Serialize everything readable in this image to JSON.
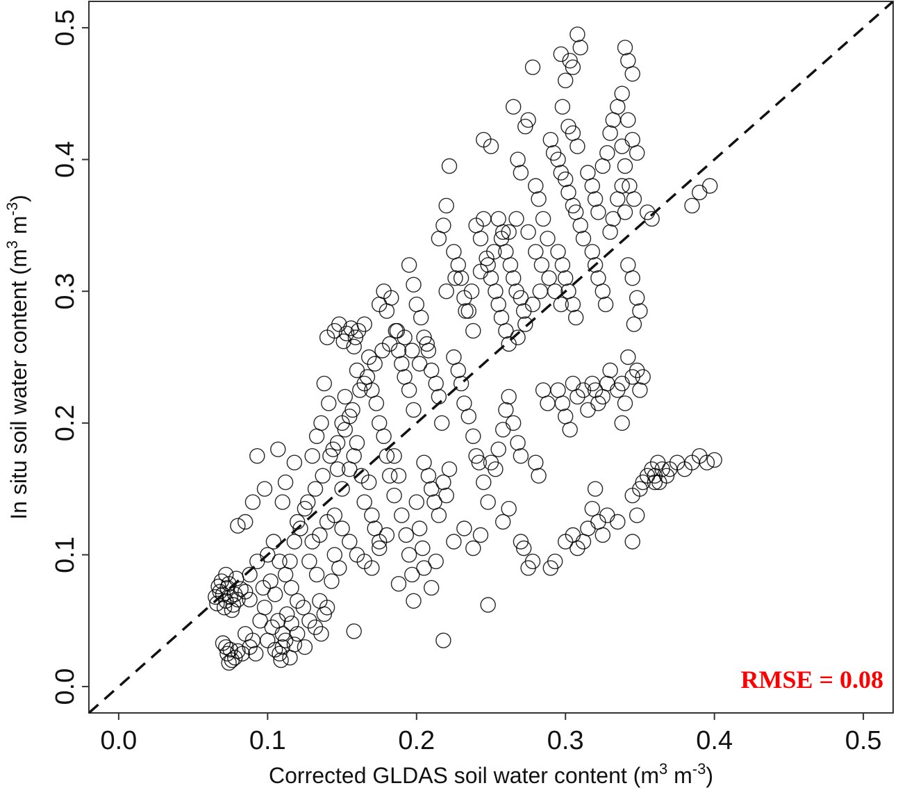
{
  "chart_data": {
    "type": "scatter",
    "xlim": [
      -0.02,
      0.52
    ],
    "ylim": [
      -0.02,
      0.52
    ],
    "x_ticks": [
      "0.0",
      "0.1",
      "0.2",
      "0.3",
      "0.4",
      "0.5"
    ],
    "y_ticks": [
      "0.0",
      "0.1",
      "0.2",
      "0.3",
      "0.4",
      "0.5"
    ],
    "xlabel": {
      "main": "Corrected GLDAS soil water content (m",
      "sup1": "3",
      "mid": " m",
      "sup2": "-3",
      "end": ")"
    },
    "ylabel": {
      "main": "In situ soil water content  (m",
      "sup1": "3",
      "mid": " m",
      "sup2": "-3",
      "end": ")"
    },
    "annotation": "RMSE = 0.08",
    "annotation_color": "#ff0000",
    "grid": false,
    "reference_line": {
      "style": "dashed",
      "from": [
        -0.02,
        -0.02
      ],
      "to": [
        0.52,
        0.52
      ]
    },
    "points": [
      [
        0.07,
        0.07
      ],
      [
        0.072,
        0.065
      ],
      [
        0.075,
        0.068
      ],
      [
        0.068,
        0.072
      ],
      [
        0.078,
        0.07
      ],
      [
        0.073,
        0.075
      ],
      [
        0.08,
        0.066
      ],
      [
        0.066,
        0.063
      ],
      [
        0.071,
        0.06
      ],
      [
        0.077,
        0.062
      ],
      [
        0.074,
        0.078
      ],
      [
        0.069,
        0.08
      ],
      [
        0.082,
        0.074
      ],
      [
        0.065,
        0.068
      ],
      [
        0.076,
        0.058
      ],
      [
        0.085,
        0.072
      ],
      [
        0.079,
        0.082
      ],
      [
        0.072,
        0.085
      ],
      [
        0.088,
        0.066
      ],
      [
        0.067,
        0.076
      ],
      [
        0.073,
        0.025
      ],
      [
        0.075,
        0.028
      ],
      [
        0.078,
        0.022
      ],
      [
        0.072,
        0.03
      ],
      [
        0.08,
        0.027
      ],
      [
        0.076,
        0.02
      ],
      [
        0.083,
        0.025
      ],
      [
        0.07,
        0.033
      ],
      [
        0.088,
        0.03
      ],
      [
        0.074,
        0.018
      ],
      [
        0.11,
        0.03
      ],
      [
        0.108,
        0.025
      ],
      [
        0.112,
        0.035
      ],
      [
        0.105,
        0.028
      ],
      [
        0.115,
        0.022
      ],
      [
        0.11,
        0.04
      ],
      [
        0.103,
        0.045
      ],
      [
        0.118,
        0.032
      ],
      [
        0.107,
        0.05
      ],
      [
        0.12,
        0.04
      ],
      [
        0.113,
        0.055
      ],
      [
        0.1,
        0.035
      ],
      [
        0.125,
        0.03
      ],
      [
        0.116,
        0.048
      ],
      [
        0.109,
        0.02
      ],
      [
        0.085,
        0.04
      ],
      [
        0.09,
        0.035
      ],
      [
        0.092,
        0.025
      ],
      [
        0.095,
        0.05
      ],
      [
        0.098,
        0.06
      ],
      [
        0.088,
        0.085
      ],
      [
        0.093,
        0.095
      ],
      [
        0.097,
        0.075
      ],
      [
        0.102,
        0.08
      ],
      [
        0.105,
        0.07
      ],
      [
        0.085,
        0.125
      ],
      [
        0.09,
        0.14
      ],
      [
        0.093,
        0.175
      ],
      [
        0.098,
        0.15
      ],
      [
        0.08,
        0.122
      ],
      [
        0.107,
        0.18
      ],
      [
        0.11,
        0.14
      ],
      [
        0.118,
        0.17
      ],
      [
        0.112,
        0.155
      ],
      [
        0.12,
        0.125
      ],
      [
        0.125,
        0.135
      ],
      [
        0.128,
        0.095
      ],
      [
        0.13,
        0.11
      ],
      [
        0.133,
        0.085
      ],
      [
        0.135,
        0.065
      ],
      [
        0.138,
        0.055
      ],
      [
        0.14,
        0.06
      ],
      [
        0.143,
        0.08
      ],
      [
        0.145,
        0.1
      ],
      [
        0.148,
        0.09
      ],
      [
        0.13,
        0.175
      ],
      [
        0.133,
        0.19
      ],
      [
        0.136,
        0.2
      ],
      [
        0.138,
        0.23
      ],
      [
        0.141,
        0.215
      ],
      [
        0.144,
        0.18
      ],
      [
        0.147,
        0.165
      ],
      [
        0.15,
        0.2
      ],
      [
        0.152,
        0.22
      ],
      [
        0.155,
        0.205
      ],
      [
        0.14,
        0.265
      ],
      [
        0.145,
        0.27
      ],
      [
        0.148,
        0.275
      ],
      [
        0.151,
        0.262
      ],
      [
        0.153,
        0.268
      ],
      [
        0.156,
        0.272
      ],
      [
        0.159,
        0.265
      ],
      [
        0.161,
        0.27
      ],
      [
        0.165,
        0.275
      ],
      [
        0.158,
        0.258
      ],
      [
        0.15,
        0.15
      ],
      [
        0.155,
        0.165
      ],
      [
        0.158,
        0.175
      ],
      [
        0.16,
        0.185
      ],
      [
        0.163,
        0.16
      ],
      [
        0.165,
        0.14
      ],
      [
        0.168,
        0.155
      ],
      [
        0.17,
        0.13
      ],
      [
        0.172,
        0.12
      ],
      [
        0.175,
        0.11
      ],
      [
        0.16,
        0.24
      ],
      [
        0.165,
        0.23
      ],
      [
        0.168,
        0.25
      ],
      [
        0.17,
        0.225
      ],
      [
        0.173,
        0.215
      ],
      [
        0.175,
        0.2
      ],
      [
        0.178,
        0.19
      ],
      [
        0.18,
        0.175
      ],
      [
        0.182,
        0.16
      ],
      [
        0.185,
        0.145
      ],
      [
        0.175,
        0.29
      ],
      [
        0.178,
        0.3
      ],
      [
        0.18,
        0.285
      ],
      [
        0.183,
        0.295
      ],
      [
        0.186,
        0.27
      ],
      [
        0.188,
        0.255
      ],
      [
        0.19,
        0.245
      ],
      [
        0.192,
        0.235
      ],
      [
        0.195,
        0.225
      ],
      [
        0.198,
        0.21
      ],
      [
        0.185,
        0.175
      ],
      [
        0.188,
        0.16
      ],
      [
        0.19,
        0.13
      ],
      [
        0.193,
        0.115
      ],
      [
        0.195,
        0.1
      ],
      [
        0.197,
        0.085
      ],
      [
        0.2,
        0.14
      ],
      [
        0.202,
        0.12
      ],
      [
        0.204,
        0.105
      ],
      [
        0.205,
        0.09
      ],
      [
        0.195,
        0.32
      ],
      [
        0.198,
        0.305
      ],
      [
        0.2,
        0.29
      ],
      [
        0.203,
        0.28
      ],
      [
        0.205,
        0.265
      ],
      [
        0.208,
        0.255
      ],
      [
        0.21,
        0.24
      ],
      [
        0.213,
        0.23
      ],
      [
        0.215,
        0.22
      ],
      [
        0.217,
        0.2
      ],
      [
        0.205,
        0.17
      ],
      [
        0.208,
        0.16
      ],
      [
        0.21,
        0.15
      ],
      [
        0.212,
        0.14
      ],
      [
        0.215,
        0.13
      ],
      [
        0.218,
        0.155
      ],
      [
        0.22,
        0.145
      ],
      [
        0.222,
        0.165
      ],
      [
        0.21,
        0.075
      ],
      [
        0.218,
        0.035
      ],
      [
        0.215,
        0.34
      ],
      [
        0.218,
        0.35
      ],
      [
        0.22,
        0.365
      ],
      [
        0.222,
        0.395
      ],
      [
        0.225,
        0.33
      ],
      [
        0.228,
        0.32
      ],
      [
        0.23,
        0.31
      ],
      [
        0.232,
        0.295
      ],
      [
        0.235,
        0.285
      ],
      [
        0.238,
        0.27
      ],
      [
        0.225,
        0.25
      ],
      [
        0.228,
        0.24
      ],
      [
        0.23,
        0.23
      ],
      [
        0.232,
        0.215
      ],
      [
        0.235,
        0.205
      ],
      [
        0.238,
        0.19
      ],
      [
        0.24,
        0.175
      ],
      [
        0.242,
        0.17
      ],
      [
        0.245,
        0.155
      ],
      [
        0.248,
        0.14
      ],
      [
        0.24,
        0.35
      ],
      [
        0.243,
        0.34
      ],
      [
        0.245,
        0.355
      ],
      [
        0.248,
        0.32
      ],
      [
        0.25,
        0.31
      ],
      [
        0.253,
        0.3
      ],
      [
        0.255,
        0.29
      ],
      [
        0.257,
        0.28
      ],
      [
        0.26,
        0.27
      ],
      [
        0.262,
        0.26
      ],
      [
        0.245,
        0.415
      ],
      [
        0.25,
        0.41
      ],
      [
        0.255,
        0.355
      ],
      [
        0.258,
        0.345
      ],
      [
        0.26,
        0.33
      ],
      [
        0.263,
        0.32
      ],
      [
        0.265,
        0.31
      ],
      [
        0.267,
        0.3
      ],
      [
        0.27,
        0.295
      ],
      [
        0.272,
        0.285
      ],
      [
        0.25,
        0.17
      ],
      [
        0.253,
        0.165
      ],
      [
        0.255,
        0.18
      ],
      [
        0.258,
        0.195
      ],
      [
        0.26,
        0.21
      ],
      [
        0.262,
        0.22
      ],
      [
        0.265,
        0.2
      ],
      [
        0.268,
        0.185
      ],
      [
        0.27,
        0.175
      ],
      [
        0.248,
        0.062
      ],
      [
        0.265,
        0.44
      ],
      [
        0.268,
        0.4
      ],
      [
        0.27,
        0.39
      ],
      [
        0.273,
        0.425
      ],
      [
        0.275,
        0.43
      ],
      [
        0.278,
        0.47
      ],
      [
        0.28,
        0.38
      ],
      [
        0.282,
        0.37
      ],
      [
        0.285,
        0.355
      ],
      [
        0.288,
        0.34
      ],
      [
        0.27,
        0.11
      ],
      [
        0.272,
        0.105
      ],
      [
        0.275,
        0.09
      ],
      [
        0.278,
        0.095
      ],
      [
        0.28,
        0.17
      ],
      [
        0.282,
        0.16
      ],
      [
        0.285,
        0.225
      ],
      [
        0.288,
        0.215
      ],
      [
        0.29,
        0.09
      ],
      [
        0.293,
        0.095
      ],
      [
        0.29,
        0.415
      ],
      [
        0.292,
        0.405
      ],
      [
        0.295,
        0.4
      ],
      [
        0.297,
        0.39
      ],
      [
        0.3,
        0.385
      ],
      [
        0.302,
        0.375
      ],
      [
        0.305,
        0.365
      ],
      [
        0.307,
        0.36
      ],
      [
        0.31,
        0.35
      ],
      [
        0.312,
        0.34
      ],
      [
        0.297,
        0.48
      ],
      [
        0.3,
        0.46
      ],
      [
        0.303,
        0.475
      ],
      [
        0.305,
        0.47
      ],
      [
        0.308,
        0.495
      ],
      [
        0.31,
        0.485
      ],
      [
        0.298,
        0.44
      ],
      [
        0.302,
        0.425
      ],
      [
        0.305,
        0.42
      ],
      [
        0.308,
        0.41
      ],
      [
        0.295,
        0.33
      ],
      [
        0.298,
        0.32
      ],
      [
        0.3,
        0.31
      ],
      [
        0.302,
        0.3
      ],
      [
        0.305,
        0.29
      ],
      [
        0.307,
        0.28
      ],
      [
        0.295,
        0.225
      ],
      [
        0.298,
        0.215
      ],
      [
        0.3,
        0.205
      ],
      [
        0.303,
        0.195
      ],
      [
        0.305,
        0.23
      ],
      [
        0.308,
        0.22
      ],
      [
        0.312,
        0.225
      ],
      [
        0.315,
        0.21
      ],
      [
        0.318,
        0.23
      ],
      [
        0.32,
        0.225
      ],
      [
        0.322,
        0.215
      ],
      [
        0.325,
        0.22
      ],
      [
        0.328,
        0.23
      ],
      [
        0.33,
        0.24
      ],
      [
        0.3,
        0.11
      ],
      [
        0.305,
        0.115
      ],
      [
        0.308,
        0.105
      ],
      [
        0.312,
        0.11
      ],
      [
        0.315,
        0.12
      ],
      [
        0.318,
        0.135
      ],
      [
        0.32,
        0.15
      ],
      [
        0.322,
        0.125
      ],
      [
        0.325,
        0.115
      ],
      [
        0.328,
        0.13
      ],
      [
        0.315,
        0.39
      ],
      [
        0.318,
        0.38
      ],
      [
        0.32,
        0.37
      ],
      [
        0.322,
        0.36
      ],
      [
        0.325,
        0.395
      ],
      [
        0.328,
        0.405
      ],
      [
        0.33,
        0.42
      ],
      [
        0.332,
        0.43
      ],
      [
        0.335,
        0.44
      ],
      [
        0.338,
        0.41
      ],
      [
        0.318,
        0.33
      ],
      [
        0.32,
        0.32
      ],
      [
        0.322,
        0.31
      ],
      [
        0.325,
        0.3
      ],
      [
        0.327,
        0.29
      ],
      [
        0.33,
        0.345
      ],
      [
        0.332,
        0.355
      ],
      [
        0.335,
        0.37
      ],
      [
        0.338,
        0.38
      ],
      [
        0.34,
        0.36
      ],
      [
        0.335,
        0.225
      ],
      [
        0.338,
        0.23
      ],
      [
        0.34,
        0.215
      ],
      [
        0.342,
        0.25
      ],
      [
        0.345,
        0.235
      ],
      [
        0.348,
        0.24
      ],
      [
        0.35,
        0.225
      ],
      [
        0.338,
        0.2
      ],
      [
        0.335,
        0.125
      ],
      [
        0.345,
        0.11
      ],
      [
        0.34,
        0.485
      ],
      [
        0.342,
        0.475
      ],
      [
        0.345,
        0.465
      ],
      [
        0.338,
        0.45
      ],
      [
        0.342,
        0.43
      ],
      [
        0.345,
        0.415
      ],
      [
        0.348,
        0.405
      ],
      [
        0.34,
        0.395
      ],
      [
        0.343,
        0.38
      ],
      [
        0.346,
        0.37
      ],
      [
        0.342,
        0.32
      ],
      [
        0.345,
        0.31
      ],
      [
        0.348,
        0.295
      ],
      [
        0.35,
        0.285
      ],
      [
        0.346,
        0.275
      ],
      [
        0.355,
        0.36
      ],
      [
        0.358,
        0.355
      ],
      [
        0.352,
        0.235
      ],
      [
        0.348,
        0.13
      ],
      [
        0.345,
        0.145
      ],
      [
        0.35,
        0.15
      ],
      [
        0.352,
        0.155
      ],
      [
        0.355,
        0.16
      ],
      [
        0.358,
        0.165
      ],
      [
        0.36,
        0.155
      ],
      [
        0.362,
        0.17
      ],
      [
        0.365,
        0.165
      ],
      [
        0.368,
        0.16
      ],
      [
        0.36,
        0.16
      ],
      [
        0.363,
        0.155
      ],
      [
        0.37,
        0.165
      ],
      [
        0.375,
        0.17
      ],
      [
        0.38,
        0.165
      ],
      [
        0.385,
        0.17
      ],
      [
        0.39,
        0.175
      ],
      [
        0.395,
        0.17
      ],
      [
        0.4,
        0.172
      ],
      [
        0.385,
        0.365
      ],
      [
        0.39,
        0.375
      ],
      [
        0.397,
        0.38
      ],
      [
        0.115,
        0.095
      ],
      [
        0.118,
        0.11
      ],
      [
        0.122,
        0.12
      ],
      [
        0.127,
        0.14
      ],
      [
        0.132,
        0.15
      ],
      [
        0.137,
        0.16
      ],
      [
        0.142,
        0.175
      ],
      [
        0.147,
        0.185
      ],
      [
        0.152,
        0.195
      ],
      [
        0.157,
        0.21
      ],
      [
        0.162,
        0.225
      ],
      [
        0.167,
        0.235
      ],
      [
        0.172,
        0.245
      ],
      [
        0.177,
        0.255
      ],
      [
        0.182,
        0.26
      ],
      [
        0.187,
        0.27
      ],
      [
        0.192,
        0.265
      ],
      [
        0.197,
        0.255
      ],
      [
        0.202,
        0.245
      ],
      [
        0.207,
        0.26
      ],
      [
        0.135,
        0.115
      ],
      [
        0.14,
        0.125
      ],
      [
        0.145,
        0.13
      ],
      [
        0.15,
        0.12
      ],
      [
        0.155,
        0.11
      ],
      [
        0.16,
        0.1
      ],
      [
        0.165,
        0.095
      ],
      [
        0.17,
        0.09
      ],
      [
        0.175,
        0.105
      ],
      [
        0.18,
        0.115
      ],
      [
        0.1,
        0.1
      ],
      [
        0.104,
        0.11
      ],
      [
        0.108,
        0.095
      ],
      [
        0.112,
        0.085
      ],
      [
        0.116,
        0.075
      ],
      [
        0.12,
        0.065
      ],
      [
        0.124,
        0.06
      ],
      [
        0.128,
        0.05
      ],
      [
        0.132,
        0.045
      ],
      [
        0.136,
        0.04
      ],
      [
        0.158,
        0.042
      ],
      [
        0.188,
        0.078
      ],
      [
        0.198,
        0.065
      ],
      [
        0.213,
        0.095
      ],
      [
        0.225,
        0.11
      ],
      [
        0.232,
        0.12
      ],
      [
        0.238,
        0.105
      ],
      [
        0.243,
        0.115
      ],
      [
        0.258,
        0.125
      ],
      [
        0.262,
        0.135
      ],
      [
        0.22,
        0.3
      ],
      [
        0.226,
        0.31
      ],
      [
        0.233,
        0.285
      ],
      [
        0.237,
        0.3
      ],
      [
        0.243,
        0.315
      ],
      [
        0.247,
        0.325
      ],
      [
        0.252,
        0.33
      ],
      [
        0.257,
        0.34
      ],
      [
        0.262,
        0.345
      ],
      [
        0.267,
        0.355
      ],
      [
        0.275,
        0.345
      ],
      [
        0.28,
        0.33
      ],
      [
        0.284,
        0.32
      ],
      [
        0.289,
        0.31
      ],
      [
        0.293,
        0.3
      ],
      [
        0.297,
        0.29
      ],
      [
        0.283,
        0.3
      ],
      [
        0.278,
        0.29
      ],
      [
        0.273,
        0.275
      ],
      [
        0.268,
        0.265
      ]
    ]
  }
}
